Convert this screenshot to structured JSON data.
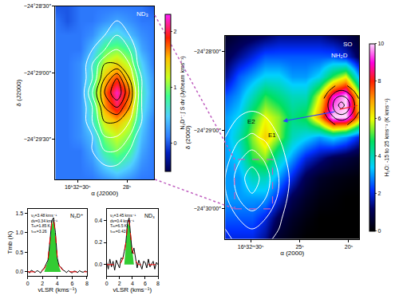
{
  "chart_data": [
    {
      "type": "heatmap",
      "x": [
        26.9,
        27.4,
        27.9,
        28.4,
        28.9,
        29.4,
        29.9,
        30.4,
        30.9
      ],
      "y": [
        -1788,
        -1781.5,
        -1775,
        -1768.5,
        -1762,
        -1755.5,
        -1749,
        -1742.5,
        -1736,
        -1729.5,
        -1723,
        -1716.5,
        -1710
      ],
      "z": [
        [
          0.1,
          0.1,
          0.2,
          0.3,
          0.2,
          0.1,
          0.1,
          0.1,
          0.1
        ],
        [
          0.1,
          0.2,
          0.5,
          0.7,
          0.5,
          0.2,
          0.1,
          0.1,
          0.1
        ],
        [
          0.1,
          0.3,
          0.8,
          1.0,
          0.8,
          0.3,
          0.1,
          0.1,
          0.1
        ],
        [
          0.1,
          0.4,
          1.0,
          1.2,
          1.0,
          0.4,
          0.2,
          0.1,
          0.1
        ],
        [
          0.1,
          0.5,
          1.2,
          1.5,
          1.3,
          0.6,
          0.2,
          0.1,
          0.1
        ],
        [
          0.2,
          0.6,
          1.6,
          2.0,
          1.6,
          0.7,
          0.2,
          0.1,
          0.1
        ],
        [
          0.2,
          0.7,
          1.7,
          2.2,
          1.7,
          0.8,
          0.2,
          0.1,
          0.1
        ],
        [
          0.2,
          0.6,
          1.4,
          1.8,
          1.5,
          0.7,
          0.2,
          0.1,
          0.1
        ],
        [
          0.1,
          0.5,
          1.1,
          1.4,
          1.2,
          0.6,
          0.2,
          0.1,
          0.1
        ],
        [
          0.1,
          0.3,
          0.8,
          1.0,
          0.9,
          0.4,
          0.1,
          0.1,
          0.1
        ],
        [
          0.1,
          0.2,
          0.4,
          0.6,
          0.5,
          0.2,
          0.1,
          0.1,
          0.1
        ],
        [
          0.1,
          0.1,
          0.2,
          0.3,
          0.2,
          0.1,
          0.1,
          0.0,
          0.1
        ],
        [
          0.0,
          0.1,
          0.1,
          0.1,
          0.1,
          0.1,
          0.1,
          0.0,
          0.0
        ]
      ],
      "xlim": [
        30.9,
        26.9
      ],
      "ylim": [
        -1788,
        -1710
      ],
      "xticks": [
        {
          "value": 30,
          "label": "16ʰ32ᵐ30ˢ"
        },
        {
          "value": 28,
          "label": "28ˢ"
        }
      ],
      "yticks": [
        {
          "value": -1770,
          "label": "−24°29′30″"
        },
        {
          "value": -1740,
          "label": "−24°29′00″"
        },
        {
          "value": -1710,
          "label": "−24°28′30″"
        }
      ],
      "xlabel": "α (J2000)",
      "ylabel": "δ (J2000)",
      "colorbar": {
        "title": "N₂D⁺: ∫ S dv (Jy/beam kms⁻¹)",
        "range": [
          -0.5,
          2.3
        ],
        "ticks": [
          0,
          1,
          2
        ]
      },
      "contours": [
        {
          "z": [
            [
              0,
              0,
              1,
              1,
              1,
              1,
              0,
              0,
              0
            ],
            [
              0,
              1,
              2,
              2,
              2,
              1,
              0,
              0,
              0
            ],
            [
              0,
              1,
              2,
              3,
              3,
              2,
              1,
              0,
              0
            ],
            [
              0,
              1,
              3,
              4,
              4,
              2,
              1,
              0,
              0
            ],
            [
              0,
              2,
              4,
              5,
              5,
              3,
              1,
              0,
              0
            ],
            [
              0,
              2,
              5,
              7,
              6,
              3,
              1,
              0,
              0
            ],
            [
              0,
              2,
              6,
              9,
              7,
              4,
              1,
              0,
              0
            ],
            [
              0,
              2,
              5,
              8,
              6,
              3,
              1,
              0,
              0
            ],
            [
              0,
              1,
              4,
              5,
              5,
              3,
              1,
              0,
              0
            ],
            [
              0,
              1,
              3,
              4,
              3,
              2,
              1,
              0,
              0
            ],
            [
              0,
              1,
              2,
              3,
              2,
              1,
              0,
              0,
              0
            ],
            [
              0,
              0,
              1,
              2,
              1,
              1,
              0,
              0,
              0
            ],
            [
              0,
              0,
              0,
              1,
              1,
              0,
              0,
              0,
              0
            ]
          ],
          "levels": [
            2,
            3,
            4,
            5,
            6,
            7,
            8
          ],
          "colors": [
            "#ffffff",
            "#ffffff",
            "#ffffff",
            "#000000",
            "#000000",
            "#000000",
            "#000000"
          ]
        }
      ],
      "annotations": [
        "ND₃"
      ]
    },
    {
      "type": "heatmap",
      "x": [
        18.9,
        20.27,
        21.64,
        23.01,
        24.38,
        25.75,
        27.12,
        28.49,
        29.86,
        31.23,
        32.6
      ],
      "y": [
        -1823,
        -1807.5,
        -1792,
        -1776.5,
        -1761,
        -1745.5,
        -1730,
        -1714.5,
        -1699,
        -1683.5,
        -1668
      ],
      "z": [
        [
          0,
          0,
          0,
          0,
          0,
          0.2,
          0.5,
          1.5,
          2.0,
          2.0,
          2.0
        ],
        [
          0,
          0,
          0,
          0,
          0.2,
          0.5,
          1.0,
          2.0,
          2.5,
          2.5,
          2.5
        ],
        [
          0,
          0,
          0.1,
          0.2,
          0.5,
          1.0,
          2.0,
          3.0,
          3.0,
          3.0,
          3.0
        ],
        [
          0.1,
          0.2,
          0.3,
          0.5,
          1.0,
          2.0,
          3.0,
          4.0,
          4.0,
          3.0,
          3.0
        ],
        [
          0.5,
          0.8,
          1.0,
          1.5,
          2.0,
          3.0,
          4.0,
          5.5,
          5.0,
          3.5,
          3.0
        ],
        [
          2.0,
          3.0,
          3.5,
          3.0,
          3.5,
          4.0,
          5.5,
          6.5,
          5.5,
          4.0,
          3.0
        ],
        [
          7.0,
          10,
          10,
          7.0,
          5.0,
          4.5,
          5.5,
          6.0,
          5.0,
          3.5,
          3.0
        ],
        [
          6.0,
          10,
          9.0,
          6.0,
          4.0,
          4.0,
          4.5,
          5.0,
          4.0,
          3.0,
          2.5
        ],
        [
          3.0,
          6.0,
          5.0,
          3.5,
          3.0,
          3.0,
          3.5,
          3.5,
          3.0,
          2.5,
          1.5
        ],
        [
          1.0,
          2.0,
          2.5,
          2.5,
          2.5,
          2.5,
          2.5,
          2.5,
          2.0,
          1.5,
          1.0
        ],
        [
          0.5,
          1.0,
          1.2,
          1.5,
          1.5,
          1.5,
          1.5,
          1.2,
          1.0,
          0.8,
          0.5
        ]
      ],
      "xlim": [
        32.6,
        18.9
      ],
      "ylim": [
        -1823,
        -1668
      ],
      "xticks": [
        {
          "value": 30,
          "label": "16ʰ32ᵐ30ˢ"
        },
        {
          "value": 25,
          "label": "25ˢ"
        },
        {
          "value": 20,
          "label": "20ˢ"
        }
      ],
      "yticks": [
        {
          "value": -1800,
          "label": "−24°30′00″"
        },
        {
          "value": -1740,
          "label": "−24°29′00″"
        },
        {
          "value": -1680,
          "label": "−24°28′00″"
        }
      ],
      "xlabel": "α (2000)",
      "ylabel": "δ (2000)",
      "colorbar": {
        "title": "H₂O: -15 to 25 kms⁻¹ (K kms⁻¹)",
        "range": [
          0,
          10
        ],
        "ticks": [
          0,
          2,
          4,
          6,
          8,
          10
        ]
      },
      "contours": [
        {
          "z": [
            [
              0,
              0,
              0,
              0,
              0,
              0.2,
              0.8,
              1.2,
              1.5,
              1.2,
              0.8
            ],
            [
              0,
              0,
              0,
              0,
              0,
              0.3,
              1.2,
              2.0,
              2.5,
              2.0,
              1.2
            ],
            [
              0,
              0,
              0,
              0,
              0,
              0.5,
              1.8,
              3.0,
              3.8,
              3.0,
              1.8
            ],
            [
              0,
              0,
              0,
              0,
              0,
              0.7,
              2.0,
              3.5,
              4.6,
              3.5,
              2.0
            ],
            [
              0,
              0,
              0,
              0,
              0,
              0.5,
              1.5,
              2.8,
              3.5,
              2.8,
              1.5
            ],
            [
              0,
              0,
              0,
              0,
              0,
              0.3,
              1.0,
              1.8,
              2.2,
              1.8,
              1.0
            ],
            [
              0,
              0,
              0,
              0,
              0,
              0,
              0.5,
              1.0,
              1.2,
              1.0,
              0.5
            ],
            [
              0,
              0,
              0,
              0,
              0,
              0,
              0,
              0.5,
              0.5,
              0.5,
              0
            ],
            [
              0,
              0,
              0,
              0,
              0,
              0,
              0,
              0,
              0,
              0,
              0
            ],
            [
              0,
              0,
              0,
              0,
              0,
              0,
              0,
              0,
              0,
              0,
              0
            ],
            [
              0,
              0,
              0,
              0,
              0,
              0,
              0,
              0,
              0,
              0,
              0
            ]
          ],
          "levels": [
            1,
            2,
            3,
            4
          ],
          "color": "#ffffff"
        },
        {
          "x": [
            18.95,
            19.55,
            20.15,
            20.75,
            21.35,
            21.95,
            22.55
          ],
          "y": [
            -1736,
            -1731,
            -1726,
            -1721,
            -1716,
            -1711,
            -1706
          ],
          "z": [
            [
              0,
              0.5,
              1,
              1.2,
              1,
              0.5,
              0
            ],
            [
              0.5,
              1.2,
              2,
              2.3,
              2,
              1.2,
              0.5
            ],
            [
              1,
              2,
              3,
              3.5,
              3,
              2,
              1
            ],
            [
              1.2,
              2.3,
              3.5,
              4.5,
              3.5,
              2.3,
              1.2
            ],
            [
              1,
              2,
              3,
              3.5,
              3,
              2,
              1
            ],
            [
              0.5,
              1.2,
              2,
              2.3,
              2,
              1.2,
              0.5
            ],
            [
              0,
              0.5,
              1,
              1.2,
              1,
              0.5,
              0
            ]
          ],
          "levels": [
            1,
            2,
            3,
            4
          ],
          "color": "#000000"
        }
      ],
      "annotations": [
        "SO",
        "NH₂D",
        "E2",
        "E1"
      ]
    },
    {
      "type": "line",
      "x": [
        0,
        0.25,
        0.5,
        0.75,
        1,
        1.25,
        1.5,
        1.75,
        2,
        2.25,
        2.5,
        2.75,
        3,
        3.25,
        3.5,
        3.75,
        4,
        4.25,
        4.5,
        4.75,
        5,
        5.25,
        5.5,
        5.75,
        6,
        6.25,
        6.5,
        6.75,
        7,
        7.25,
        7.5,
        7.75,
        8
      ],
      "series": [
        {
          "type": "area",
          "color": "#33cc33",
          "values": [
            0,
            0,
            0,
            0,
            0,
            0,
            0,
            0,
            0,
            0,
            0.15,
            0.28,
            0.7,
            1.2,
            1.3,
            0.9,
            0.33,
            0.12,
            0,
            0,
            0,
            0,
            0,
            0,
            0,
            0,
            0,
            0,
            0,
            0,
            0,
            0,
            0
          ]
        },
        {
          "type": "line",
          "color": "#000000",
          "line_style": "solid",
          "values": [
            0.02,
            -0.03,
            0.04,
            0.0,
            -0.02,
            0.03,
            0.01,
            -0.03,
            0.05,
            0.1,
            0.2,
            0.3,
            0.75,
            1.3,
            1.38,
            1.0,
            0.35,
            0.15,
            0.12,
            0.05,
            0.02,
            -0.02,
            0.03,
            0.0,
            -0.03,
            0.02,
            0.01,
            -0.02,
            0.03,
            0.0,
            -0.01,
            0.02,
            0.0
          ]
        },
        {
          "type": "line",
          "color": "#ff0000",
          "line_style": "dash",
          "values": [
            0,
            0,
            0,
            0,
            0,
            0,
            0,
            0,
            0.03,
            0.08,
            0.18,
            0.32,
            0.8,
            1.25,
            1.35,
            0.95,
            0.38,
            0.16,
            0.1,
            0.04,
            0.01,
            0,
            0,
            0,
            0,
            0,
            0,
            0,
            0,
            0,
            0,
            0,
            0
          ]
        }
      ],
      "xlim": [
        0,
        8
      ],
      "ylim": [
        -0.1,
        1.6
      ],
      "xticks": [
        0,
        2,
        4,
        6,
        8
      ],
      "yticks": [
        {
          "value": 0,
          "label": "0.0"
        },
        0.5,
        {
          "value": 1,
          "label": "1.0"
        },
        1.5
      ],
      "xlabel": "vLSR (kms⁻¹)",
      "ylabel": "Tmb (K)",
      "annotations": [
        "N₂D⁺",
        "v₀=3.48 kms⁻¹",
        "dv=0.34 kms⁻¹",
        "Tₑₓ=1.85 K",
        "τₜₒₜ=3.26"
      ]
    },
    {
      "type": "line",
      "x": [
        0,
        0.25,
        0.5,
        0.75,
        1,
        1.25,
        1.5,
        1.75,
        2,
        2.25,
        2.5,
        2.75,
        3,
        3.25,
        3.5,
        3.75,
        4,
        4.25,
        4.5,
        4.75,
        5,
        5.25,
        5.5,
        5.75,
        6,
        6.25,
        6.5,
        6.75,
        7,
        7.25,
        7.5,
        7.75,
        8
      ],
      "series": [
        {
          "type": "area",
          "color": "#33cc33",
          "values": [
            0,
            0,
            0,
            0,
            0,
            0,
            0,
            0,
            0,
            0,
            0,
            0,
            0.18,
            0.35,
            0.38,
            0.24,
            0.1,
            0,
            0,
            0,
            0,
            0,
            0,
            0,
            0,
            0,
            0,
            0,
            0,
            0,
            0,
            0,
            0
          ]
        },
        {
          "type": "line",
          "color": "#000000",
          "line_style": "solid",
          "values": [
            0.02,
            -0.04,
            0.05,
            -0.02,
            0.03,
            -0.05,
            0.04,
            0.0,
            -0.03,
            0.06,
            0.05,
            0.12,
            0.2,
            0.38,
            0.42,
            0.25,
            0.1,
            0.15,
            0.05,
            -0.03,
            0.04,
            0.0,
            -0.04,
            0.03,
            0.02,
            -0.03,
            0.05,
            -0.02,
            0.01,
            0.03,
            -0.04,
            0.02,
            0.0
          ]
        },
        {
          "type": "line",
          "color": "#ff0000",
          "line_style": "dash",
          "values": [
            0,
            0,
            0,
            0,
            0,
            0,
            0,
            0,
            0,
            0.02,
            0.05,
            0.1,
            0.2,
            0.36,
            0.4,
            0.26,
            0.12,
            0.1,
            0.04,
            0.01,
            0,
            0,
            0,
            0,
            0,
            0,
            0,
            0,
            0,
            0,
            0,
            0,
            0
          ]
        }
      ],
      "xlim": [
        0,
        8
      ],
      "ylim": [
        -0.1,
        0.5
      ],
      "xticks": [
        0,
        2,
        4,
        6,
        8
      ],
      "yticks": [
        {
          "value": 0,
          "label": "0.0"
        },
        0.2,
        0.4
      ],
      "xlabel": "vLSR (kms⁻¹)",
      "annotations": [
        "ND₃",
        "v₀=3.45 kms⁻¹",
        "dv=0.4 kms⁻¹",
        "Tₑₓ=6.5 K",
        "τₜₒₜ=0.43"
      ]
    }
  ]
}
